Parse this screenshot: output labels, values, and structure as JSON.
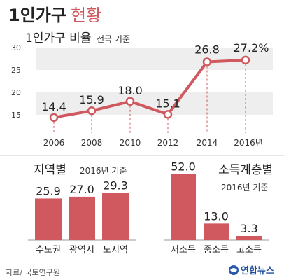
{
  "header": {
    "title_bold": "1인가구",
    "title_rest": "현황"
  },
  "source": "자료/ 국토연구원",
  "logo_text": "연합뉴스",
  "colors": {
    "accent": "#d0585f",
    "band": "#eeeeee",
    "divider": "#cccccc",
    "text": "#222222",
    "label": "#333333",
    "muted": "#555555"
  },
  "chart_data": [
    {
      "type": "line",
      "title": "1인가구 비율",
      "subtitle": "전국 기준",
      "x": [
        "2006",
        "2008",
        "2010",
        "2012",
        "2014",
        "2016년"
      ],
      "values": [
        14.4,
        15.9,
        18.0,
        15.1,
        26.8,
        27.2
      ],
      "value_labels": [
        "14.4",
        "15.9",
        "18.0",
        "15.1",
        "26.8",
        "27.2%"
      ],
      "yticks": [
        "30",
        "25",
        "20",
        "15"
      ],
      "ylim": [
        15,
        30
      ],
      "grid": "alternating bands",
      "dashed_drop_lines": true
    },
    {
      "type": "bar",
      "title": "지역별",
      "subtitle": "2016년 기준",
      "categories": [
        "수도권",
        "광역시",
        "도지역"
      ],
      "values": [
        25.9,
        27.0,
        29.3
      ],
      "value_labels": [
        "25.9",
        "27.0",
        "29.3"
      ],
      "ylim": [
        0,
        30
      ]
    },
    {
      "type": "bar",
      "title": "소득계층별",
      "subtitle": "2016년 기준",
      "categories": [
        "저소득",
        "중소득",
        "고소득"
      ],
      "values": [
        52.0,
        13.0,
        3.3
      ],
      "value_labels": [
        "52.0",
        "13.0",
        "3.3"
      ],
      "ylim": [
        0,
        55
      ]
    }
  ]
}
